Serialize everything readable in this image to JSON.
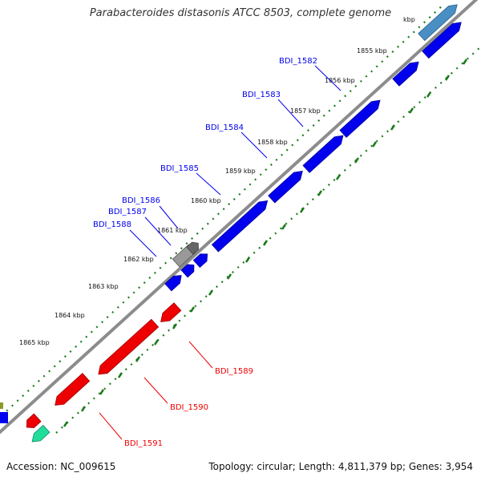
{
  "title": "Parabacteroides distasonis ATCC 8503, complete genome",
  "footer": {
    "accession": "Accession: NC_009615",
    "summary": "Topology: circular; Length: 4,811,379 bp; Genes: 3,954"
  },
  "colors": {
    "forward_gene": "#0000ee",
    "reverse_gene": "#ee0000",
    "backbone": "#8c8c8c",
    "tick": "#1a7a1a",
    "rna_gene": "#22dd99",
    "pseudo_gene": "#999999"
  },
  "ticks": [
    {
      "label": "1855 kbp"
    },
    {
      "label": "1856 kbp"
    },
    {
      "label": "1857 kbp"
    },
    {
      "label": "1858 kbp"
    },
    {
      "label": "1859 kbp"
    },
    {
      "label": "1860 kbp"
    },
    {
      "label": "1861 kbp"
    },
    {
      "label": "1862 kbp"
    },
    {
      "label": "1863 kbp"
    },
    {
      "label": "1864 kbp"
    },
    {
      "label": "1865 kbp"
    }
  ],
  "partial_tick_label": "kbp",
  "genes": [
    {
      "name": "BDI_1582",
      "strand": "+"
    },
    {
      "name": "BDI_1583",
      "strand": "+"
    },
    {
      "name": "BDI_1584",
      "strand": "+"
    },
    {
      "name": "BDI_1585",
      "strand": "+"
    },
    {
      "name": "BDI_1586",
      "strand": "+"
    },
    {
      "name": "BDI_1587",
      "strand": "+"
    },
    {
      "name": "BDI_1588",
      "strand": "+"
    },
    {
      "name": "BDI_1589",
      "strand": "-"
    },
    {
      "name": "BDI_1590",
      "strand": "-"
    },
    {
      "name": "BDI_1591",
      "strand": "-"
    }
  ]
}
